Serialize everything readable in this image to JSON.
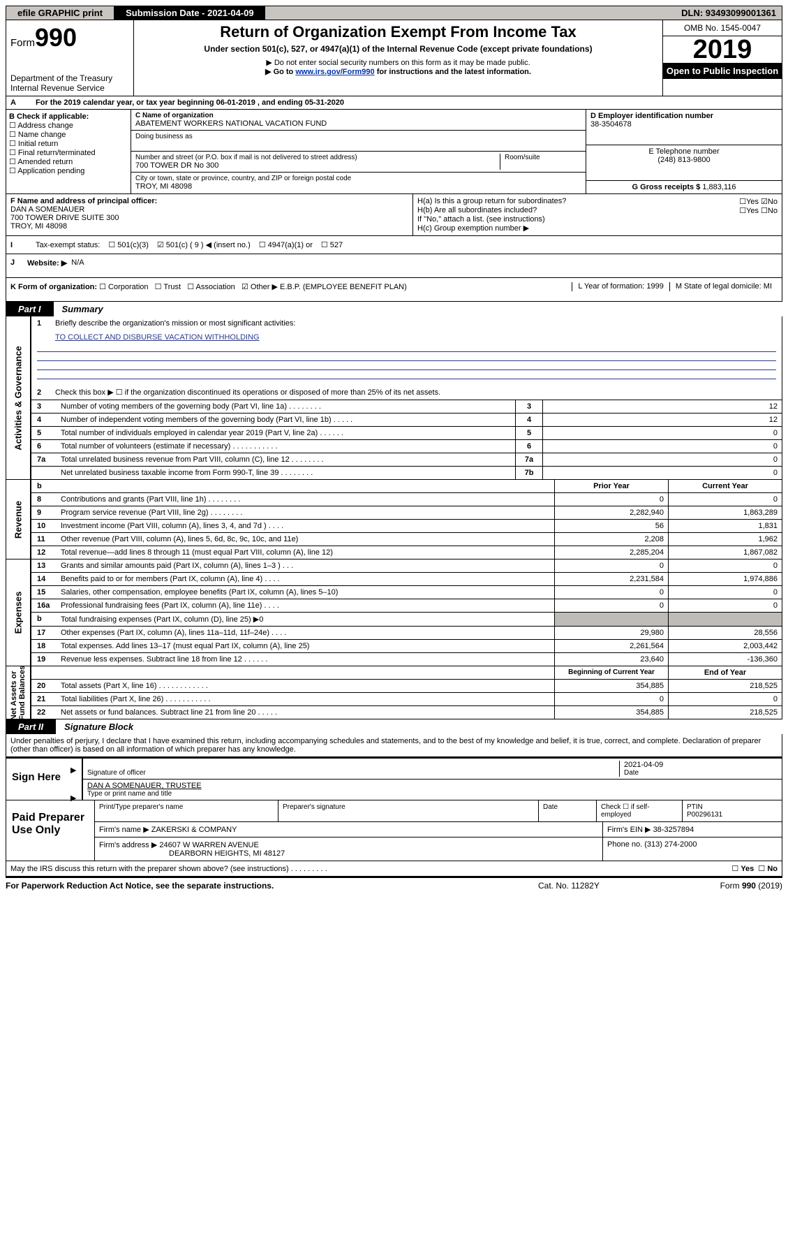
{
  "topbar": {
    "efile": "efile GRAPHIC print",
    "subdate": "Submission Date - 2021-04-09",
    "dln": "DLN: 93493099001361"
  },
  "header": {
    "form_prefix": "Form",
    "form_number": "990",
    "dept": "Department of the Treasury",
    "irs": "Internal Revenue Service",
    "title": "Return of Organization Exempt From Income Tax",
    "subtitle": "Under section 501(c), 527, or 4947(a)(1) of the Internal Revenue Code (except private foundations)",
    "note1": "▶ Do not enter social security numbers on this form as it may be made public.",
    "note2_pre": "▶ Go to ",
    "note2_link": "www.irs.gov/Form990",
    "note2_post": " for instructions and the latest information.",
    "omb": "OMB No. 1545-0047",
    "year": "2019",
    "open": "Open to Public Inspection"
  },
  "lineA": "For the 2019 calendar year, or tax year beginning 06-01-2019    , and ending 05-31-2020",
  "boxB": {
    "title": "B Check if applicable:",
    "items": [
      "Address change",
      "Name change",
      "Initial return",
      "Final return/terminated",
      "Amended return",
      "Application pending"
    ]
  },
  "boxC": {
    "label_name": "C Name of organization",
    "name": "ABATEMENT WORKERS NATIONAL VACATION FUND",
    "dba_label": "Doing business as",
    "addr_label": "Number and street (or P.O. box if mail is not delivered to street address)",
    "room_label": "Room/suite",
    "addr": "700 TOWER DR No 300",
    "city_label": "City or town, state or province, country, and ZIP or foreign postal code",
    "city": "TROY, MI  48098"
  },
  "boxD": {
    "label": "D Employer identification number",
    "val": "38-3504678"
  },
  "boxE": {
    "label": "E Telephone number",
    "val": "(248) 813-9800"
  },
  "boxG": {
    "label": "G Gross receipts $",
    "val": "1,883,116"
  },
  "boxF": {
    "label": "F  Name and address of principal officer:",
    "name": "DAN A SOMENAUER",
    "addr1": "700 TOWER DRIVE SUITE 300",
    "addr2": "TROY, MI  48098"
  },
  "boxH": {
    "ha": "H(a)  Is this a group return for subordinates?",
    "hb": "H(b)  Are all subordinates included?",
    "hbnote": "If \"No,\" attach a list. (see instructions)",
    "hc": "H(c)  Group exemption number ▶"
  },
  "status": {
    "label": "Tax-exempt status:",
    "o1": "501(c)(3)",
    "o2": "501(c) ( 9 ) ◀ (insert no.)",
    "o3": "4947(a)(1) or",
    "o4": "527"
  },
  "website": {
    "label": "Website: ▶",
    "val": "N/A"
  },
  "korg": {
    "label": "K Form of organization:",
    "opts": [
      "Corporation",
      "Trust",
      "Association"
    ],
    "other": "Other ▶",
    "otherval": "E.B.P. (EMPLOYEE BENEFIT PLAN)",
    "L": "L Year of formation: 1999",
    "M": "M State of legal domicile: MI"
  },
  "part1": {
    "tab": "Part I",
    "title": "Summary"
  },
  "gov": {
    "q1": "Briefly describe the organization's mission or most significant activities:",
    "mission": "TO COLLECT AND DISBURSE VACATION WITHHOLDING",
    "q2": "Check this box ▶ ☐  if the organization discontinued its operations or disposed of more than 25% of its net assets.",
    "rows": [
      {
        "n": "3",
        "t": "Number of voting members of the governing body (Part VI, line 1a)   .     .     .     .     .     .     .     .",
        "c": "3",
        "v": "12"
      },
      {
        "n": "4",
        "t": "Number of independent voting members of the governing body (Part VI, line 1b)   .     .     .     .     .",
        "c": "4",
        "v": "12"
      },
      {
        "n": "5",
        "t": "Total number of individuals employed in calendar year 2019 (Part V, line 2a)   .     .     .     .     .     .",
        "c": "5",
        "v": "0"
      },
      {
        "n": "6",
        "t": "Total number of volunteers (estimate if necessary)   .     .     .     .     .     .     .     .     .     .     .",
        "c": "6",
        "v": "0"
      },
      {
        "n": "7a",
        "t": "Total unrelated business revenue from Part VIII, column (C), line 12   .     .     .     .     .     .     .     .",
        "c": "7a",
        "v": "0"
      },
      {
        "n": "",
        "t": "Net unrelated business taxable income from Form 990-T, line 39   .     .     .     .     .     .     .     .",
        "c": "7b",
        "v": "0"
      }
    ]
  },
  "colhdr": {
    "b": "b",
    "prior": "Prior Year",
    "curr": "Current Year"
  },
  "revenue": [
    {
      "n": "8",
      "t": "Contributions and grants (Part VIII, line 1h)   .     .     .     .     .     .     .     .",
      "a": "0",
      "b": "0"
    },
    {
      "n": "9",
      "t": "Program service revenue (Part VIII, line 2g)   .     .     .     .     .     .     .     .",
      "a": "2,282,940",
      "b": "1,863,289"
    },
    {
      "n": "10",
      "t": "Investment income (Part VIII, column (A), lines 3, 4, and 7d )   .     .     .     .",
      "a": "56",
      "b": "1,831"
    },
    {
      "n": "11",
      "t": "Other revenue (Part VIII, column (A), lines 5, 6d, 8c, 9c, 10c, and 11e)",
      "a": "2,208",
      "b": "1,962"
    },
    {
      "n": "12",
      "t": "Total revenue—add lines 8 through 11 (must equal Part VIII, column (A), line 12)",
      "a": "2,285,204",
      "b": "1,867,082"
    }
  ],
  "expenses": [
    {
      "n": "13",
      "t": "Grants and similar amounts paid (Part IX, column (A), lines 1–3 )   .     .     .",
      "a": "0",
      "b": "0"
    },
    {
      "n": "14",
      "t": "Benefits paid to or for members (Part IX, column (A), line 4)   .     .     .     .",
      "a": "2,231,584",
      "b": "1,974,886"
    },
    {
      "n": "15",
      "t": "Salaries, other compensation, employee benefits (Part IX, column (A), lines 5–10)",
      "a": "0",
      "b": "0"
    },
    {
      "n": "16a",
      "t": "Professional fundraising fees (Part IX, column (A), line 11e)   .     .     .     .",
      "a": "0",
      "b": "0"
    },
    {
      "n": "b",
      "t": "Total fundraising expenses (Part IX, column (D), line 25) ▶0",
      "a": "shade",
      "b": "shade"
    },
    {
      "n": "17",
      "t": "Other expenses (Part IX, column (A), lines 11a–11d, 11f–24e)   .     .     .     .",
      "a": "29,980",
      "b": "28,556"
    },
    {
      "n": "18",
      "t": "Total expenses. Add lines 13–17 (must equal Part IX, column (A), line 25)",
      "a": "2,261,564",
      "b": "2,003,442"
    },
    {
      "n": "19",
      "t": "Revenue less expenses. Subtract line 18 from line 12   .     .     .     .     .     .",
      "a": "23,640",
      "b": "-136,360"
    }
  ],
  "netassets": {
    "hdr": {
      "a": "Beginning of Current Year",
      "b": "End of Year"
    },
    "rows": [
      {
        "n": "20",
        "t": "Total assets (Part X, line 16)   .     .     .     .     .     .     .     .     .     .     .     .",
        "a": "354,885",
        "b": "218,525"
      },
      {
        "n": "21",
        "t": "Total liabilities (Part X, line 26)   .     .     .     .     .     .     .     .     .     .     .",
        "a": "0",
        "b": "0"
      },
      {
        "n": "22",
        "t": "Net assets or fund balances. Subtract line 21 from line 20   .     .     .     .     .",
        "a": "354,885",
        "b": "218,525"
      }
    ]
  },
  "part2": {
    "tab": "Part II",
    "title": "Signature Block"
  },
  "perjury": "Under penalties of perjury, I declare that I have examined this return, including accompanying schedules and statements, and to the best of my knowledge and belief, it is true, correct, and complete. Declaration of preparer (other than officer) is based on all information of which preparer has any knowledge.",
  "sign": {
    "label": "Sign Here",
    "date": "2021-04-09",
    "sigcap": "Signature of officer",
    "datecap": "Date",
    "name": "DAN A SOMENAUER, TRUSTEE",
    "namecap": "Type or print name and title"
  },
  "paid": {
    "label": "Paid Preparer Use Only",
    "h1": "Print/Type preparer's name",
    "h2": "Preparer's signature",
    "h3": "Date",
    "h4pre": "Check ☐ if self-employed",
    "h5": "PTIN",
    "ptin": "P00296131",
    "firmname_l": "Firm's name     ▶",
    "firmname": "ZAKERSKI & COMPANY",
    "firmein_l": "Firm's EIN ▶",
    "firmein": "38-3257894",
    "firmaddr_l": "Firm's address ▶",
    "firmaddr1": "24607 W WARREN AVENUE",
    "firmaddr2": "DEARBORN HEIGHTS, MI  48127",
    "phone_l": "Phone no.",
    "phone": "(313) 274-2000"
  },
  "discuss": "May the IRS discuss this return with the preparer shown above? (see instructions)   .     .     .     .     .     .     .     .     .",
  "footer": {
    "left": "For Paperwork Reduction Act Notice, see the separate instructions.",
    "mid": "Cat. No. 11282Y",
    "right": "Form 990 (2019)"
  }
}
